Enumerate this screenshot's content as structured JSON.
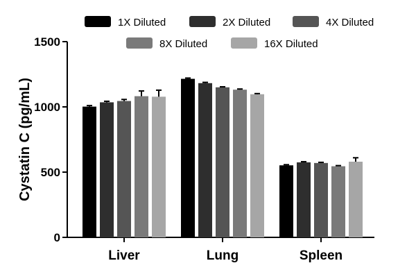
{
  "chart_data": {
    "type": "bar",
    "ylabel": "Cystatin C (pg/mL)",
    "xlabel": "",
    "ylim": [
      0,
      1500
    ],
    "yticks": [
      "0",
      "500",
      "1000",
      "1500"
    ],
    "categories": [
      "Liver",
      "Lung",
      "Spleen"
    ],
    "legend_position": "top",
    "grid": false,
    "series": [
      {
        "name": "1X Diluted",
        "color": "#000000",
        "values": [
          1002,
          1215,
          552
        ],
        "errors": [
          8,
          6,
          5
        ]
      },
      {
        "name": "2X Diluted",
        "color": "#2e2e2e",
        "values": [
          1035,
          1182,
          575
        ],
        "errors": [
          8,
          6,
          5
        ]
      },
      {
        "name": "4X Diluted",
        "color": "#555555",
        "values": [
          1045,
          1150,
          570
        ],
        "errors": [
          12,
          4,
          5
        ]
      },
      {
        "name": "8X Diluted",
        "color": "#7a7a7a",
        "values": [
          1082,
          1132,
          545
        ],
        "errors": [
          40,
          5,
          5
        ]
      },
      {
        "name": "16X Diluted",
        "color": "#a6a6a6",
        "values": [
          1078,
          1097,
          580
        ],
        "errors": [
          50,
          5,
          30
        ]
      }
    ]
  }
}
